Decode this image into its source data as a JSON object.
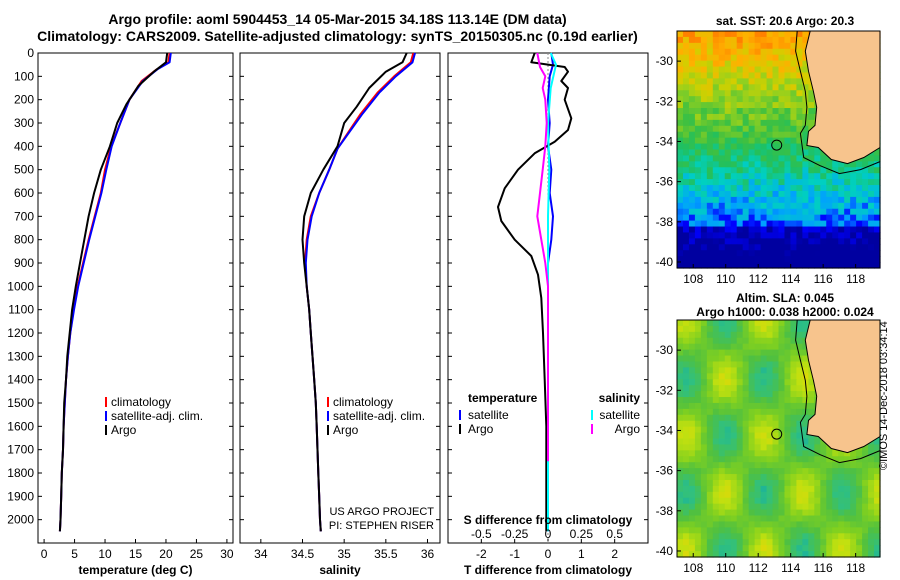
{
  "header": {
    "title_line1": "Argo profile: aoml 5904453_14 05-Mar-2015 34.18S 113.14E (DM data)",
    "title_line2": "Climatology: CARS2009. Satellite-adjusted climatology: synTS_20150305.nc (0.19d earlier)"
  },
  "colors": {
    "climatology": "#ff0000",
    "satellite": "#0000ff",
    "argo": "#000000",
    "sat_salinity": "#00ffff",
    "argo_salinity": "#ff00ff",
    "land": "#f7c48d"
  },
  "chart_data": [
    {
      "type": "line",
      "id": "temperature",
      "xlabel": "temperature (deg C)",
      "ylabel": "",
      "xlim": [
        -1,
        31
      ],
      "ylim": [
        2100,
        0
      ],
      "xticks": [
        "0",
        "5",
        "10",
        "15",
        "20",
        "25",
        "30"
      ],
      "xtick_values": [
        0,
        5,
        10,
        15,
        20,
        25,
        30
      ],
      "yticks": [
        "0",
        "100",
        "200",
        "300",
        "400",
        "500",
        "600",
        "700",
        "800",
        "900",
        "1000",
        "1100",
        "1200",
        "1300",
        "1400",
        "1500",
        "1600",
        "1700",
        "1800",
        "1900",
        "2000"
      ],
      "legend": [
        "climatology",
        "satellite-adj. clim.",
        "Argo"
      ],
      "series": [
        {
          "name": "climatology",
          "color": "#ff0000",
          "points": [
            [
              20.6,
              0
            ],
            [
              20.4,
              40
            ],
            [
              18.5,
              70
            ],
            [
              16,
              120
            ],
            [
              14,
              200
            ],
            [
              12.5,
              300
            ],
            [
              11,
              400
            ],
            [
              10,
              500
            ],
            [
              9.3,
              600
            ],
            [
              8.3,
              700
            ],
            [
              7.3,
              800
            ],
            [
              6.4,
              900
            ],
            [
              5.5,
              1000
            ],
            [
              4.8,
              1100
            ],
            [
              4.3,
              1200
            ],
            [
              3.9,
              1300
            ],
            [
              3.6,
              1400
            ],
            [
              3.4,
              1500
            ],
            [
              3.2,
              1600
            ],
            [
              3.1,
              1700
            ],
            [
              2.9,
              1800
            ],
            [
              2.8,
              1900
            ],
            [
              2.7,
              2000
            ],
            [
              2.6,
              2050
            ]
          ]
        },
        {
          "name": "satellite-adj. clim.",
          "color": "#0000ff",
          "points": [
            [
              20.8,
              0
            ],
            [
              20.6,
              40
            ],
            [
              18.6,
              70
            ],
            [
              16.2,
              120
            ],
            [
              14,
              200
            ],
            [
              12.5,
              300
            ],
            [
              11.1,
              400
            ],
            [
              10.2,
              500
            ],
            [
              9.4,
              600
            ],
            [
              8.4,
              700
            ],
            [
              7.4,
              800
            ],
            [
              6.5,
              900
            ],
            [
              5.6,
              1000
            ],
            [
              4.9,
              1100
            ],
            [
              4.3,
              1200
            ],
            [
              3.9,
              1300
            ],
            [
              3.6,
              1400
            ],
            [
              3.4,
              1500
            ],
            [
              3.2,
              1600
            ],
            [
              3.1,
              1700
            ],
            [
              2.9,
              1800
            ],
            [
              2.8,
              1900
            ],
            [
              2.7,
              2000
            ],
            [
              2.6,
              2050
            ]
          ]
        },
        {
          "name": "Argo",
          "color": "#000000",
          "points": [
            [
              20.2,
              0
            ],
            [
              20,
              40
            ],
            [
              18,
              80
            ],
            [
              15.5,
              140
            ],
            [
              13.5,
              220
            ],
            [
              12,
              300
            ],
            [
              10.8,
              400
            ],
            [
              9.3,
              500
            ],
            [
              8.2,
              600
            ],
            [
              7.3,
              700
            ],
            [
              6.6,
              800
            ],
            [
              5.9,
              900
            ],
            [
              5.2,
              1000
            ],
            [
              4.6,
              1100
            ],
            [
              4.2,
              1200
            ],
            [
              3.8,
              1300
            ],
            [
              3.6,
              1400
            ],
            [
              3.3,
              1500
            ],
            [
              3.2,
              1600
            ],
            [
              3.1,
              1700
            ],
            [
              2.9,
              1800
            ],
            [
              2.8,
              1900
            ],
            [
              2.7,
              2000
            ],
            [
              2.6,
              2050
            ]
          ]
        }
      ],
      "annotation": ""
    },
    {
      "type": "line",
      "id": "salinity",
      "xlabel": "salinity",
      "ylabel": "",
      "xlim": [
        33.75,
        36.15
      ],
      "ylim": [
        2100,
        0
      ],
      "xticks": [
        "34",
        "34.5",
        "35",
        "35.5",
        "36"
      ],
      "xtick_values": [
        34,
        34.5,
        35,
        35.5,
        36
      ],
      "legend": [
        "climatology",
        "satellite-adj. clim.",
        "Argo"
      ],
      "series": [
        {
          "name": "climatology",
          "color": "#ff0000",
          "points": [
            [
              35.83,
              0
            ],
            [
              35.8,
              40
            ],
            [
              35.6,
              100
            ],
            [
              35.4,
              170
            ],
            [
              35.2,
              260
            ],
            [
              35.05,
              340
            ],
            [
              34.92,
              410
            ],
            [
              34.82,
              500
            ],
            [
              34.7,
              600
            ],
            [
              34.6,
              700
            ],
            [
              34.55,
              800
            ],
            [
              34.53,
              900
            ],
            [
              34.55,
              1000
            ],
            [
              34.58,
              1100
            ],
            [
              34.6,
              1200
            ],
            [
              34.62,
              1300
            ],
            [
              34.64,
              1400
            ],
            [
              34.66,
              1500
            ],
            [
              34.67,
              1600
            ],
            [
              34.68,
              1700
            ],
            [
              34.69,
              1800
            ],
            [
              34.7,
              1900
            ],
            [
              34.71,
              2000
            ],
            [
              34.72,
              2050
            ]
          ]
        },
        {
          "name": "satellite-adj. clim.",
          "color": "#0000ff",
          "points": [
            [
              35.85,
              0
            ],
            [
              35.82,
              40
            ],
            [
              35.62,
              100
            ],
            [
              35.42,
              170
            ],
            [
              35.22,
              260
            ],
            [
              35.06,
              340
            ],
            [
              34.92,
              410
            ],
            [
              34.82,
              500
            ],
            [
              34.7,
              600
            ],
            [
              34.61,
              700
            ],
            [
              34.56,
              800
            ],
            [
              34.54,
              900
            ],
            [
              34.55,
              1000
            ],
            [
              34.58,
              1100
            ],
            [
              34.6,
              1200
            ],
            [
              34.62,
              1300
            ],
            [
              34.64,
              1400
            ],
            [
              34.66,
              1500
            ],
            [
              34.67,
              1600
            ],
            [
              34.68,
              1700
            ],
            [
              34.69,
              1800
            ],
            [
              34.7,
              1900
            ],
            [
              34.71,
              2000
            ],
            [
              34.72,
              2050
            ]
          ]
        },
        {
          "name": "Argo",
          "color": "#000000",
          "points": [
            [
              35.75,
              0
            ],
            [
              35.7,
              40
            ],
            [
              35.5,
              80
            ],
            [
              35.3,
              150
            ],
            [
              35.15,
              230
            ],
            [
              35.0,
              300
            ],
            [
              34.92,
              400
            ],
            [
              34.75,
              500
            ],
            [
              34.6,
              600
            ],
            [
              34.52,
              700
            ],
            [
              34.5,
              800
            ],
            [
              34.52,
              900
            ],
            [
              34.55,
              1000
            ],
            [
              34.58,
              1100
            ],
            [
              34.6,
              1200
            ],
            [
              34.62,
              1300
            ],
            [
              34.64,
              1400
            ],
            [
              34.66,
              1500
            ],
            [
              34.67,
              1600
            ],
            [
              34.68,
              1700
            ],
            [
              34.69,
              1800
            ],
            [
              34.7,
              1900
            ],
            [
              34.71,
              2000
            ],
            [
              34.72,
              2050
            ]
          ]
        }
      ],
      "annotation": [
        "US ARGO PROJECT",
        "PI: STEPHEN RISER"
      ]
    },
    {
      "type": "line",
      "id": "difference",
      "xlabel": "T difference from climatology",
      "ylabel": "",
      "xlim": [
        -3,
        3
      ],
      "ylim": [
        2100,
        0
      ],
      "xticks": [
        "-2",
        "-1",
        "0",
        "1",
        "2"
      ],
      "xtick_values": [
        -2,
        -1,
        0,
        1,
        2
      ],
      "secondary_xlabel": "S difference from climatology",
      "secondary_xticks": [
        "-0.5",
        "-0.25",
        "0",
        "0.25",
        "0.5"
      ],
      "legend_left": {
        "title": "temperature",
        "items": [
          "satellite",
          "Argo"
        ]
      },
      "legend_right": {
        "title": "salinity",
        "items": [
          "satellite",
          "Argo"
        ]
      },
      "series": [
        {
          "name": "temperature satellite",
          "color": "#0000ff",
          "points": [
            [
              0.1,
              0
            ],
            [
              0.15,
              50
            ],
            [
              0.05,
              100
            ],
            [
              0.0,
              200
            ],
            [
              0.05,
              300
            ],
            [
              0.0,
              400
            ],
            [
              0.1,
              500
            ],
            [
              0.05,
              600
            ],
            [
              0.15,
              700
            ],
            [
              0.1,
              800
            ],
            [
              0.0,
              900
            ],
            [
              0.0,
              1000
            ],
            [
              0.0,
              1200
            ],
            [
              0.0,
              1500
            ],
            [
              0.0,
              2050
            ]
          ]
        },
        {
          "name": "temperature Argo",
          "color": "#000000",
          "points": [
            [
              -0.4,
              0
            ],
            [
              -0.5,
              40
            ],
            [
              0.5,
              60
            ],
            [
              0.6,
              80
            ],
            [
              0.4,
              120
            ],
            [
              0.6,
              150
            ],
            [
              0.5,
              200
            ],
            [
              0.7,
              280
            ],
            [
              0.6,
              330
            ],
            [
              0.2,
              380
            ],
            [
              -0.4,
              430
            ],
            [
              -0.9,
              500
            ],
            [
              -1.3,
              580
            ],
            [
              -1.5,
              660
            ],
            [
              -1.4,
              720
            ],
            [
              -1.0,
              800
            ],
            [
              -0.5,
              870
            ],
            [
              -0.3,
              950
            ],
            [
              -0.2,
              1050
            ],
            [
              -0.15,
              1200
            ],
            [
              -0.1,
              1400
            ],
            [
              -0.05,
              1600
            ],
            [
              -0.05,
              1800
            ],
            [
              -0.05,
              2050
            ]
          ]
        },
        {
          "name": "salinity satellite",
          "color": "#00ffff",
          "points": [
            [
              0.02,
              0
            ],
            [
              0.06,
              50
            ],
            [
              0.02,
              150
            ],
            [
              0.0,
              300
            ],
            [
              0.01,
              500
            ],
            [
              0.0,
              700
            ],
            [
              0.0,
              1000
            ],
            [
              0.0,
              2050
            ]
          ]
        },
        {
          "name": "salinity Argo",
          "color": "#ff00ff",
          "points": [
            [
              -0.08,
              0
            ],
            [
              -0.06,
              60
            ],
            [
              -0.02,
              100
            ],
            [
              -0.04,
              150
            ],
            [
              -0.02,
              200
            ],
            [
              -0.01,
              300
            ],
            [
              -0.02,
              400
            ],
            [
              -0.04,
              500
            ],
            [
              -0.06,
              600
            ],
            [
              -0.08,
              700
            ],
            [
              -0.05,
              800
            ],
            [
              -0.02,
              900
            ],
            [
              0.0,
              1000
            ],
            [
              0.0,
              1200
            ],
            [
              0.0,
              1500
            ],
            [
              0.0,
              1750
            ]
          ]
        }
      ],
      "annotation": ""
    },
    {
      "type": "heatmap",
      "id": "sst_map",
      "title": "sat. SST: 20.6 Argo: 20.3",
      "xlim": [
        107,
        119.5
      ],
      "ylim": [
        -40.3,
        -28.5
      ],
      "xticks": [
        "108",
        "110",
        "112",
        "114",
        "116",
        "118"
      ],
      "xtick_values": [
        108,
        110,
        112,
        114,
        116,
        118
      ],
      "yticks": [
        "-30",
        "-32",
        "-34",
        "-36",
        "-38",
        "-40"
      ],
      "ytick_values": [
        -30,
        -32,
        -34,
        -36,
        -38,
        -40
      ],
      "profile_location": {
        "lon": 113.14,
        "lat": -34.18
      }
    },
    {
      "type": "heatmap",
      "id": "sla_map",
      "title_line1": "Altim. SLA: 0.045",
      "title_line2": "Argo h1000: 0.038 h2000: 0.024",
      "xlim": [
        107,
        119.5
      ],
      "ylim": [
        -40.3,
        -28.5
      ],
      "xticks": [
        "108",
        "110",
        "112",
        "114",
        "116",
        "118"
      ],
      "xtick_values": [
        108,
        110,
        112,
        114,
        116,
        118
      ],
      "yticks": [
        "-30",
        "-32",
        "-34",
        "-36",
        "-38",
        "-40"
      ],
      "ytick_values": [
        -30,
        -32,
        -34,
        -36,
        -38,
        -40
      ],
      "profile_location": {
        "lon": 113.14,
        "lat": -34.18
      }
    }
  ],
  "footer": {
    "credit": "©IMOS 14-Dec-2018 03:34:14"
  }
}
